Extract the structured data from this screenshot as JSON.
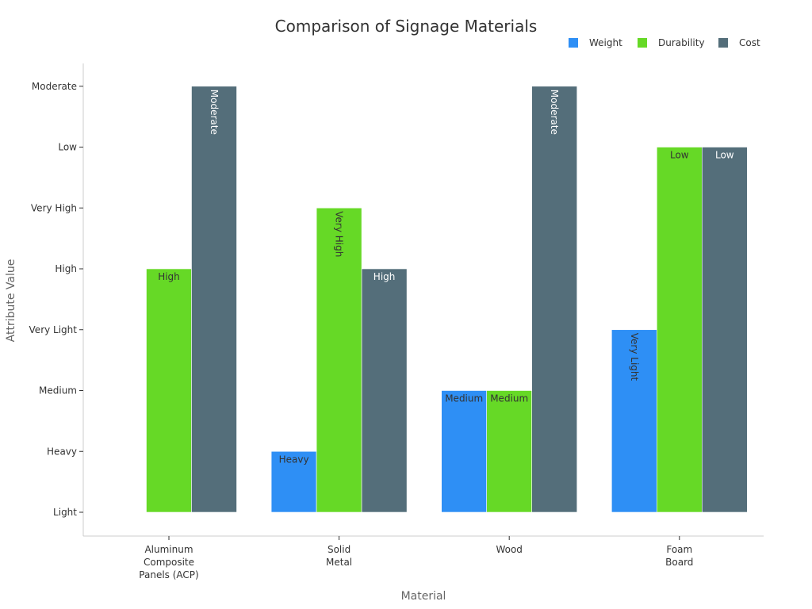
{
  "chart_data": {
    "type": "bar",
    "title": "Comparison of Signage Materials",
    "xlabel": "Material",
    "ylabel": "Attribute Value",
    "y_categories": [
      "Light",
      "Heavy",
      "Medium",
      "Very Light",
      "High",
      "Very High",
      "Low",
      "Moderate"
    ],
    "categories": [
      "Aluminum Composite Panels (ACP)",
      "Solid Metal",
      "Wood",
      "Foam Board"
    ],
    "category_lines": [
      [
        "Aluminum",
        "Composite",
        "Panels (ACP)"
      ],
      [
        "Solid",
        "Metal"
      ],
      [
        "Wood"
      ],
      [
        "Foam",
        "Board"
      ]
    ],
    "series": [
      {
        "name": "Weight",
        "color": "#2e8ff5",
        "label_color": "#333333",
        "values": [
          "Light",
          "Heavy",
          "Medium",
          "Very Light"
        ]
      },
      {
        "name": "Durability",
        "color": "#66d926",
        "label_color": "#333333",
        "values": [
          "High",
          "Very High",
          "Medium",
          "Low"
        ]
      },
      {
        "name": "Cost",
        "color": "#546e7a",
        "label_color": "#ffffff",
        "values": [
          "Moderate",
          "High",
          "Moderate",
          "Low"
        ]
      }
    ],
    "legend_position": "top-right",
    "grid": false
  }
}
